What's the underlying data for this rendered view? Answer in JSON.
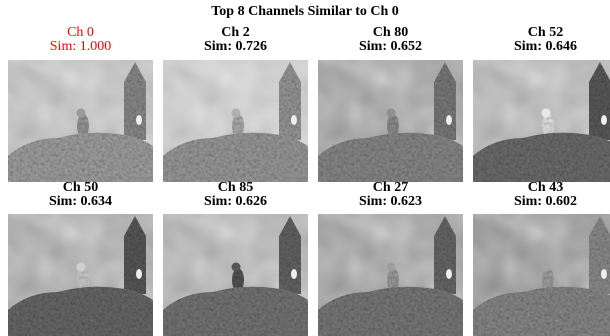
{
  "title": "Top 8 Channels Similar to Ch 0",
  "panels": [
    {
      "channel": "Ch 0",
      "similarity": "Sim: 1.000"
    },
    {
      "channel": "Ch 2",
      "similarity": "Sim: 0.726"
    },
    {
      "channel": "Ch 80",
      "similarity": "Sim: 0.652"
    },
    {
      "channel": "Ch 52",
      "similarity": "Sim: 0.646"
    },
    {
      "channel": "Ch 50",
      "similarity": "Sim: 0.634"
    },
    {
      "channel": "Ch 85",
      "similarity": "Sim: 0.626"
    },
    {
      "channel": "Ch 27",
      "similarity": "Sim: 0.623"
    },
    {
      "channel": "Ch 43",
      "similarity": "Sim: 0.602"
    }
  ]
}
